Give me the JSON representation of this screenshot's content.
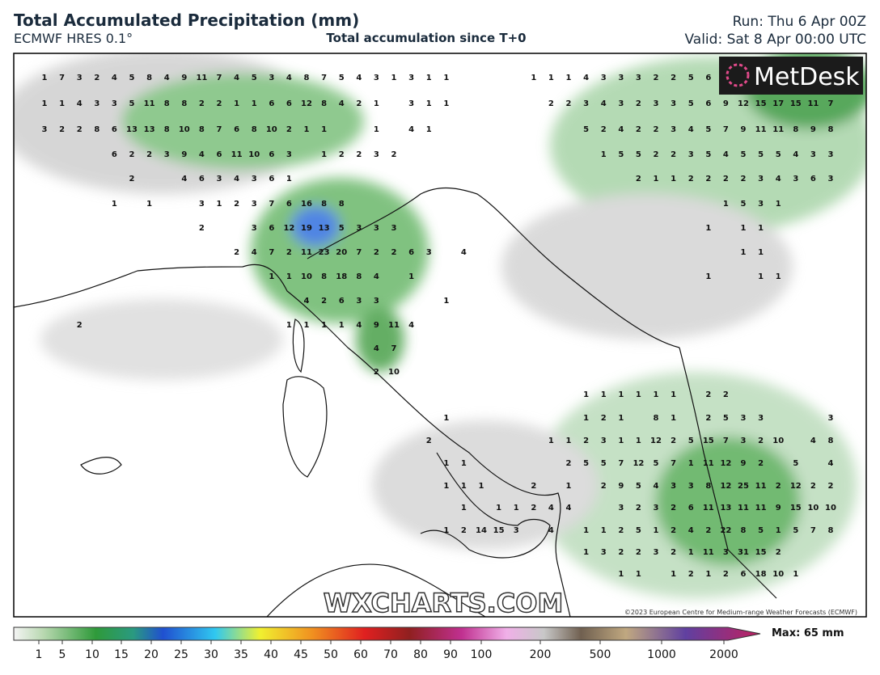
{
  "header": {
    "title": "Total Accumulated Precipitation (mm)",
    "model": "ECMWF HRES 0.1°",
    "subtitle": "Total accumulation since T+0",
    "run": "Run: Thu 6 Apr 00Z",
    "valid": "Valid: Sat 8 Apr 00:00 UTC"
  },
  "logo": "MetDesk",
  "watermark": "WXCHARTS.COM",
  "copyright": "©2023 European Centre for Medium-range Weather Forecasts (ECMWF)",
  "map_labels": [
    [
      1,
      7,
      3,
      2,
      4,
      5,
      8,
      4,
      9,
      11,
      7,
      4,
      5,
      3,
      4,
      8,
      7,
      5,
      4,
      3,
      1,
      3,
      1,
      1,
      null,
      null,
      null,
      null,
      1,
      1,
      1,
      4,
      3,
      3,
      3,
      2,
      2,
      5,
      6
    ],
    [
      1,
      1,
      4,
      3,
      3,
      5,
      11,
      8,
      8,
      2,
      2,
      1,
      1,
      6,
      6,
      12,
      8,
      4,
      2,
      1,
      null,
      3,
      1,
      1,
      null,
      null,
      null,
      null,
      null,
      2,
      2,
      3,
      4,
      3,
      2,
      3,
      3,
      5,
      6,
      9,
      12,
      15,
      17,
      15,
      11,
      7
    ],
    [
      3,
      2,
      2,
      8,
      6,
      13,
      13,
      8,
      10,
      8,
      7,
      6,
      8,
      10,
      2,
      1,
      1,
      null,
      null,
      1,
      null,
      4,
      1,
      null,
      null,
      null,
      null,
      null,
      null,
      null,
      null,
      5,
      2,
      4,
      2,
      2,
      3,
      4,
      5,
      7,
      9,
      11,
      11,
      8,
      9,
      8
    ],
    [
      null,
      null,
      null,
      null,
      6,
      2,
      2,
      3,
      9,
      4,
      6,
      11,
      10,
      6,
      3,
      null,
      1,
      2,
      2,
      3,
      2,
      null,
      null,
      null,
      null,
      null,
      null,
      null,
      null,
      null,
      null,
      null,
      1,
      5,
      5,
      2,
      2,
      3,
      5,
      4,
      5,
      5,
      5,
      4,
      3,
      3
    ],
    [
      null,
      null,
      null,
      null,
      null,
      2,
      null,
      null,
      4,
      6,
      3,
      4,
      3,
      6,
      1,
      null,
      null,
      null,
      null,
      null,
      null,
      null,
      null,
      null,
      null,
      null,
      null,
      null,
      null,
      null,
      null,
      null,
      null,
      null,
      2,
      1,
      1,
      2,
      2,
      2,
      2,
      3,
      4,
      3,
      6,
      3
    ],
    [
      null,
      null,
      null,
      null,
      1,
      null,
      1,
      null,
      null,
      3,
      1,
      2,
      3,
      7,
      6,
      16,
      8,
      8,
      null,
      null,
      null,
      null,
      null,
      null,
      null,
      null,
      null,
      null,
      null,
      null,
      null,
      null,
      null,
      null,
      null,
      null,
      null,
      null,
      null,
      1,
      5,
      3,
      1
    ],
    [
      null,
      null,
      null,
      null,
      null,
      null,
      null,
      null,
      null,
      2,
      null,
      null,
      3,
      6,
      12,
      19,
      13,
      5,
      3,
      3,
      3,
      null,
      null,
      null,
      null,
      null,
      null,
      null,
      null,
      null,
      null,
      null,
      null,
      null,
      null,
      null,
      null,
      null,
      1,
      null,
      1,
      1
    ],
    [
      null,
      null,
      null,
      null,
      null,
      null,
      null,
      null,
      null,
      null,
      null,
      2,
      4,
      7,
      2,
      11,
      23,
      20,
      7,
      2,
      2,
      6,
      3,
      null,
      4,
      null,
      null,
      null,
      null,
      null,
      null,
      null,
      null,
      null,
      null,
      null,
      null,
      null,
      null,
      null,
      1,
      1
    ],
    [
      null,
      null,
      null,
      null,
      null,
      null,
      null,
      null,
      null,
      null,
      null,
      null,
      null,
      1,
      1,
      10,
      8,
      18,
      8,
      4,
      null,
      1,
      null,
      null,
      null,
      null,
      null,
      null,
      null,
      null,
      null,
      null,
      null,
      null,
      null,
      null,
      null,
      null,
      1,
      null,
      null,
      1,
      1
    ],
    [
      null,
      null,
      null,
      null,
      null,
      null,
      null,
      null,
      null,
      null,
      null,
      null,
      null,
      null,
      null,
      4,
      2,
      6,
      3,
      3,
      null,
      null,
      null,
      1
    ],
    [
      null,
      null,
      2,
      null,
      null,
      null,
      null,
      null,
      null,
      null,
      null,
      null,
      null,
      null,
      1,
      1,
      1,
      1,
      4,
      9,
      11,
      4
    ],
    [
      null,
      null,
      null,
      null,
      null,
      null,
      null,
      null,
      null,
      null,
      null,
      null,
      null,
      null,
      null,
      null,
      null,
      null,
      null,
      4,
      7
    ],
    [
      null,
      null,
      null,
      null,
      null,
      null,
      null,
      null,
      null,
      null,
      null,
      null,
      null,
      null,
      null,
      null,
      null,
      null,
      null,
      2,
      10
    ],
    [
      null,
      null,
      null,
      null,
      null,
      null,
      null,
      null,
      null,
      null,
      null,
      null,
      null,
      null,
      null,
      null,
      null,
      null,
      null,
      null,
      null,
      null,
      null,
      null,
      null,
      null,
      null,
      null,
      null,
      null,
      null,
      1,
      1,
      1,
      1,
      1,
      1,
      null,
      2,
      2
    ],
    [
      null,
      null,
      null,
      null,
      null,
      null,
      null,
      null,
      null,
      null,
      null,
      null,
      null,
      null,
      null,
      null,
      null,
      null,
      null,
      null,
      null,
      null,
      null,
      1,
      null,
      null,
      null,
      null,
      null,
      null,
      null,
      1,
      2,
      1,
      null,
      8,
      1,
      null,
      2,
      5,
      3,
      3,
      null,
      null,
      null,
      3
    ],
    [
      null,
      null,
      null,
      null,
      null,
      null,
      null,
      null,
      null,
      null,
      null,
      null,
      null,
      null,
      null,
      null,
      null,
      null,
      null,
      null,
      null,
      null,
      2,
      null,
      null,
      null,
      null,
      null,
      null,
      1,
      1,
      2,
      3,
      1,
      1,
      12,
      2,
      5,
      15,
      7,
      3,
      2,
      10,
      null,
      4,
      8
    ],
    [
      null,
      null,
      null,
      null,
      null,
      null,
      null,
      null,
      null,
      null,
      null,
      null,
      null,
      null,
      null,
      null,
      null,
      null,
      null,
      null,
      null,
      null,
      null,
      1,
      1,
      null,
      null,
      null,
      null,
      null,
      2,
      5,
      5,
      7,
      12,
      5,
      7,
      1,
      11,
      12,
      9,
      2,
      null,
      5,
      null,
      4
    ],
    [
      null,
      null,
      null,
      null,
      null,
      null,
      null,
      null,
      null,
      null,
      null,
      null,
      null,
      null,
      null,
      null,
      null,
      null,
      null,
      null,
      null,
      null,
      null,
      1,
      1,
      1,
      null,
      null,
      2,
      null,
      1,
      null,
      2,
      9,
      5,
      4,
      3,
      3,
      8,
      12,
      25,
      11,
      2,
      12,
      2,
      2
    ],
    [
      null,
      null,
      null,
      null,
      null,
      null,
      null,
      null,
      null,
      null,
      null,
      null,
      null,
      null,
      null,
      null,
      null,
      null,
      null,
      null,
      null,
      null,
      null,
      null,
      1,
      null,
      1,
      1,
      2,
      4,
      4,
      null,
      null,
      3,
      2,
      3,
      2,
      6,
      11,
      13,
      11,
      11,
      9,
      15,
      10,
      10
    ],
    [
      null,
      null,
      null,
      null,
      null,
      null,
      null,
      null,
      null,
      null,
      null,
      null,
      null,
      null,
      null,
      null,
      null,
      null,
      null,
      null,
      null,
      null,
      null,
      1,
      2,
      14,
      15,
      3,
      null,
      4,
      null,
      1,
      1,
      2,
      5,
      1,
      2,
      4,
      2,
      22,
      8,
      5,
      1,
      5,
      7,
      8
    ],
    [
      null,
      null,
      null,
      null,
      null,
      null,
      null,
      null,
      null,
      null,
      null,
      null,
      null,
      null,
      null,
      null,
      null,
      null,
      null,
      null,
      null,
      null,
      null,
      null,
      null,
      null,
      null,
      null,
      null,
      null,
      null,
      1,
      3,
      2,
      2,
      3,
      2,
      1,
      11,
      3,
      31,
      15,
      2
    ],
    [
      null,
      null,
      null,
      null,
      null,
      null,
      null,
      null,
      null,
      null,
      null,
      null,
      null,
      null,
      null,
      null,
      null,
      null,
      null,
      null,
      null,
      null,
      null,
      null,
      null,
      null,
      null,
      null,
      null,
      null,
      null,
      null,
      null,
      1,
      1,
      null,
      1,
      2,
      1,
      2,
      6,
      18,
      10,
      1
    ]
  ],
  "colorbar": {
    "ticks": [
      1,
      5,
      10,
      15,
      20,
      25,
      30,
      35,
      40,
      45,
      50,
      60,
      70,
      80,
      90,
      100,
      200,
      500,
      1000,
      2000
    ],
    "max_label": "Max: 65 mm"
  }
}
